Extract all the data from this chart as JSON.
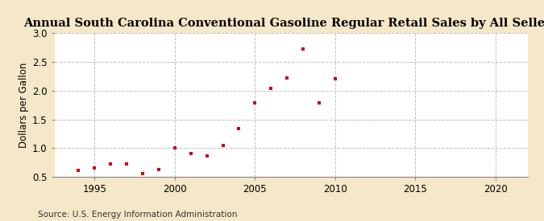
{
  "title": "Annual South Carolina Conventional Gasoline Regular Retail Sales by All Sellers",
  "ylabel": "Dollars per Gallon",
  "source": "Source: U.S. Energy Information Administration",
  "years": [
    1994,
    1995,
    1996,
    1997,
    1998,
    1999,
    2000,
    2001,
    2002,
    2003,
    2004,
    2005,
    2006,
    2007,
    2008,
    2009,
    2010
  ],
  "values": [
    0.61,
    0.65,
    0.73,
    0.72,
    0.55,
    0.63,
    1.0,
    0.91,
    0.87,
    1.04,
    1.34,
    1.78,
    2.04,
    2.22,
    2.73,
    1.78,
    2.2
  ],
  "marker_color": "#cc0000",
  "figure_background_color": "#f5e8c8",
  "plot_background_color": "#ffffff",
  "grid_color": "#bbbbbb",
  "xlim": [
    1992.5,
    2022
  ],
  "ylim": [
    0.5,
    3.0
  ],
  "xticks": [
    1995,
    2000,
    2005,
    2010,
    2015,
    2020
  ],
  "yticks": [
    0.5,
    1.0,
    1.5,
    2.0,
    2.5,
    3.0
  ],
  "title_fontsize": 10.5,
  "label_fontsize": 8.5,
  "tick_fontsize": 8.5,
  "source_fontsize": 7.5
}
